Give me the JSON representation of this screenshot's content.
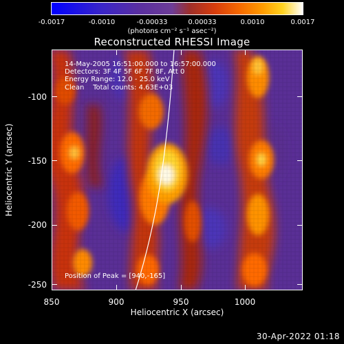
{
  "title": "Reconstructed RHESSI Image",
  "colorbar": {
    "ticks": [
      "-0.0017",
      "-0.0010",
      "-0.00033",
      "0.00033",
      "0.0010",
      "0.0017"
    ],
    "units": "(photons cm⁻² s⁻¹ asec⁻²)"
  },
  "info": {
    "time": "14-May-2005 16:51:00.000 to 16:57:00.000",
    "detectors": "Detectors: 3F 4F 5F 6F 7F 8F, Att 0",
    "energy": "Energy Range: 12.0 - 25.0 keV",
    "clean": "Clean    Total counts: 4.63E+03"
  },
  "peak_text": "Position of Peak = [940,-165]",
  "x_axis": {
    "label": "Heliocentric X (arcsec)",
    "ticks": [
      "850",
      "900",
      "950",
      "1000"
    ]
  },
  "y_axis": {
    "label": "Heliocentric Y (arcsec)",
    "ticks": [
      "-100",
      "-150",
      "-200",
      "-250"
    ]
  },
  "timestamp": "30-Apr-2022 01:18",
  "image_data": {
    "x_range": [
      850,
      1040
    ],
    "y_range": [
      -255,
      -70
    ],
    "peak": [
      940,
      -165
    ]
  }
}
